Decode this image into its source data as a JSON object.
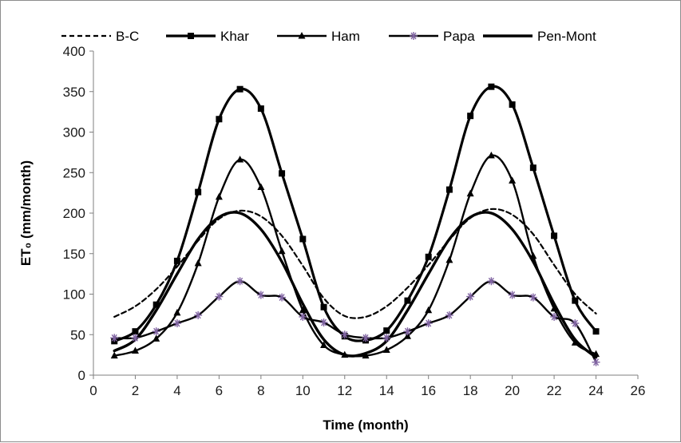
{
  "chart_data": {
    "type": "line",
    "xlabel": "Time (month)",
    "ylabel": "ET₀ (mm/month)",
    "xlim": [
      0,
      26
    ],
    "ylim": [
      0,
      400
    ],
    "xticks": [
      0,
      2,
      4,
      6,
      8,
      10,
      12,
      14,
      16,
      18,
      20,
      22,
      24,
      26
    ],
    "yticks": [
      0,
      50,
      100,
      150,
      200,
      250,
      300,
      350,
      400
    ],
    "grid": false,
    "legend_position": "top",
    "x": [
      1,
      2,
      3,
      4,
      5,
      6,
      7,
      8,
      9,
      10,
      11,
      12,
      13,
      14,
      15,
      16,
      17,
      18,
      19,
      20,
      21,
      22,
      23,
      24
    ],
    "series": [
      {
        "name": "B-C",
        "style": "dashed",
        "marker": "none",
        "color": "#000000",
        "values": [
          72,
          85,
          106,
          134,
          166,
          193,
          203,
          196,
          172,
          135,
          95,
          73,
          72,
          85,
          108,
          136,
          167,
          194,
          205,
          198,
          174,
          136,
          100,
          76
        ]
      },
      {
        "name": "Khar",
        "style": "solid",
        "marker": "square",
        "color": "#000000",
        "values": [
          42,
          54,
          87,
          141,
          226,
          316,
          353,
          329,
          249,
          168,
          84,
          48,
          43,
          55,
          92,
          146,
          229,
          320,
          356,
          334,
          256,
          172,
          92,
          54
        ]
      },
      {
        "name": "Ham",
        "style": "solid",
        "marker": "triangle",
        "color": "#000000",
        "values": [
          24,
          30,
          45,
          77,
          138,
          220,
          266,
          232,
          153,
          80,
          37,
          25,
          24,
          31,
          48,
          80,
          142,
          224,
          271,
          240,
          147,
          82,
          40,
          26
        ]
      },
      {
        "name": "Papa",
        "style": "solid",
        "marker": "asterisk",
        "color": "#8064a2",
        "values": [
          46,
          46,
          54,
          64,
          74,
          97,
          116,
          99,
          96,
          72,
          65,
          50,
          46,
          46,
          54,
          64,
          74,
          97,
          116,
          99,
          96,
          72,
          64,
          16
        ]
      },
      {
        "name": "Pen-Mont",
        "style": "solid-thick",
        "marker": "none",
        "color": "#000000",
        "values": [
          30,
          44,
          80,
          125,
          168,
          195,
          200,
          180,
          140,
          88,
          44,
          25,
          27,
          42,
          80,
          125,
          168,
          195,
          200,
          180,
          140,
          88,
          44,
          22
        ]
      }
    ]
  }
}
